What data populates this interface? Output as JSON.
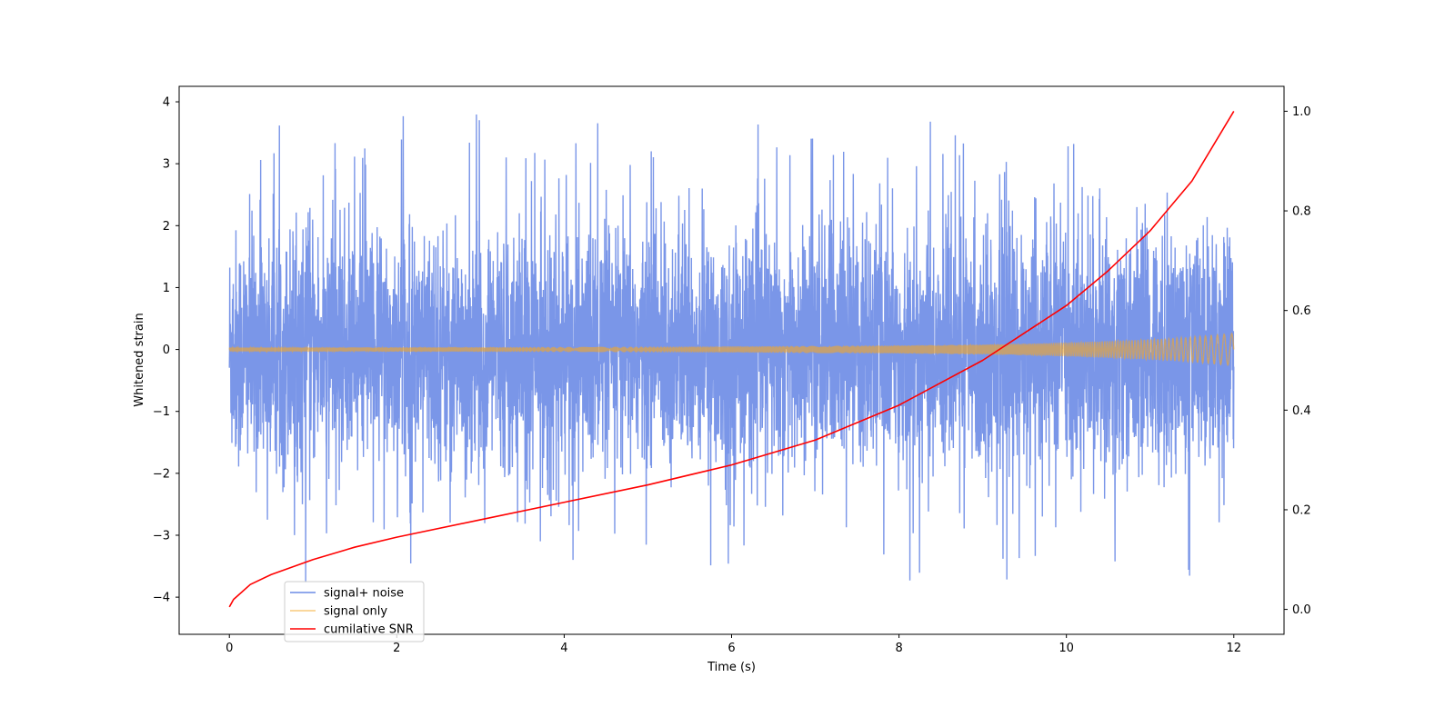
{
  "chart_data": {
    "type": "line",
    "title": "",
    "xlabel": "Time (s)",
    "ylabel": "Whitened strain",
    "y2label": "",
    "xlim": [
      -0.6,
      12.6
    ],
    "ylim": [
      -4.6,
      4.25
    ],
    "y2lim": [
      -0.05,
      1.05
    ],
    "x_ticks": [
      0,
      2,
      4,
      6,
      8,
      10,
      12
    ],
    "y_ticks": [
      -4,
      -3,
      -2,
      -1,
      0,
      1,
      2,
      3,
      4
    ],
    "y2_ticks": [
      0.0,
      0.2,
      0.4,
      0.6,
      0.8,
      1.0
    ],
    "x_tick_labels": [
      "0",
      "2",
      "4",
      "6",
      "8",
      "10",
      "12"
    ],
    "y_tick_labels": [
      "−4",
      "−3",
      "−2",
      "−1",
      "0",
      "1",
      "2",
      "3",
      "4"
    ],
    "y2_tick_labels": [
      "0.0",
      "0.2",
      "0.4",
      "0.6",
      "0.8",
      "1.0"
    ],
    "grid": false,
    "legend_position": "lower-left",
    "series": [
      {
        "name": "signal+ noise",
        "axis": "left",
        "color": "#6b8be6",
        "kind": "noise",
        "x_range": [
          0,
          12
        ],
        "typical_range": [
          -1.8,
          2.0
        ],
        "max": 3.87,
        "min": -4.15
      },
      {
        "name": "signal only",
        "axis": "left",
        "color": "#f5a623",
        "kind": "chirp-envelope",
        "x": [
          0,
          2,
          4,
          6,
          8,
          9,
          10,
          11,
          11.5,
          12
        ],
        "amplitude": [
          0.03,
          0.035,
          0.04,
          0.05,
          0.065,
          0.08,
          0.11,
          0.16,
          0.2,
          0.26
        ]
      },
      {
        "name": "cumilative SNR",
        "axis": "right",
        "color": "#ff0000",
        "kind": "line",
        "x": [
          0,
          0.05,
          0.25,
          0.5,
          1,
          1.5,
          2,
          3,
          4,
          5,
          6,
          7,
          8,
          9,
          10,
          10.5,
          11,
          11.5,
          12
        ],
        "y": [
          0.005,
          0.02,
          0.05,
          0.07,
          0.1,
          0.125,
          0.145,
          0.18,
          0.215,
          0.25,
          0.29,
          0.34,
          0.41,
          0.5,
          0.61,
          0.68,
          0.76,
          0.86,
          1.0
        ]
      }
    ]
  }
}
